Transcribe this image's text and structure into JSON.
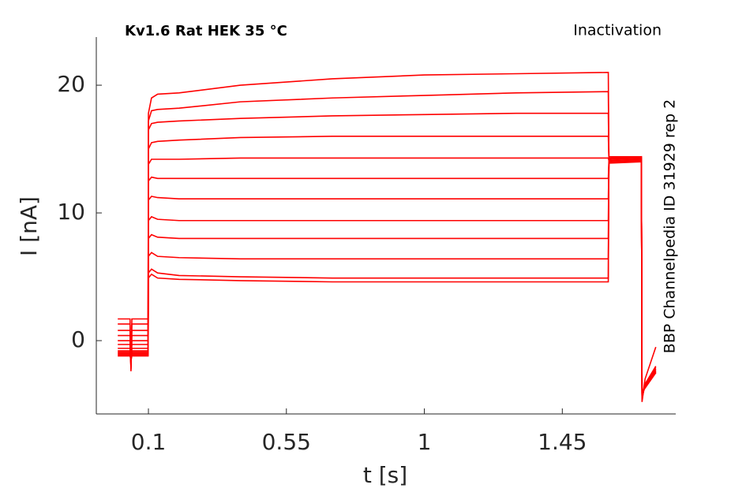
{
  "chart_data": {
    "type": "line",
    "title": "Kv1.6  Rat  HEK  35 °C",
    "subtitle": "Inactivation",
    "annotation": "BBP Channelpedia ID 31929 rep 2",
    "xlabel": "t [s]",
    "ylabel": "I [nA]",
    "xlim": [
      -0.07,
      1.82
    ],
    "ylim": [
      -5.74,
      23.77
    ],
    "xticks": [
      0.1,
      0.55,
      1,
      1.45
    ],
    "yticks": [
      0,
      10,
      20
    ],
    "grid": false,
    "x": [
      0.0,
      0.04,
      0.043,
      0.046,
      0.05,
      0.099,
      0.1,
      0.11,
      0.13,
      0.2,
      0.4,
      0.7,
      1.0,
      1.3,
      1.6,
      1.602,
      1.61,
      1.708,
      1.71,
      1.72,
      1.755
    ],
    "series": [
      {
        "color": "#ff0000",
        "values": [
          1.7,
          1.7,
          -2.4,
          1.7,
          1.7,
          1.7,
          17.8,
          19.0,
          19.3,
          19.4,
          20.0,
          20.5,
          20.8,
          20.9,
          21.0,
          14.4,
          14.4,
          14.4,
          -4.8,
          -3.0,
          -0.5
        ]
      },
      {
        "color": "#ff0000",
        "values": [
          1.3,
          1.3,
          -2.3,
          1.3,
          1.3,
          1.3,
          17.2,
          18.0,
          18.1,
          18.2,
          18.7,
          19.0,
          19.2,
          19.4,
          19.5,
          14.3,
          14.3,
          14.4,
          -4.6,
          -3.4,
          -2.0
        ]
      },
      {
        "color": "#ff0000",
        "values": [
          0.8,
          0.8,
          -2.2,
          0.8,
          0.8,
          0.8,
          16.5,
          17.0,
          17.1,
          17.2,
          17.4,
          17.6,
          17.7,
          17.8,
          17.8,
          14.2,
          14.3,
          14.3,
          -4.5,
          -3.4,
          -2.1
        ]
      },
      {
        "color": "#ff0000",
        "values": [
          0.4,
          0.4,
          -2.1,
          0.4,
          0.4,
          0.4,
          15.0,
          15.5,
          15.6,
          15.7,
          15.9,
          16.0,
          16.0,
          16.0,
          16.0,
          14.2,
          14.2,
          14.3,
          -4.4,
          -3.5,
          -2.2
        ]
      },
      {
        "color": "#ff0000",
        "values": [
          0,
          0,
          -2.0,
          0,
          0,
          0,
          13.8,
          14.2,
          14.2,
          14.2,
          14.3,
          14.3,
          14.3,
          14.3,
          14.3,
          14.1,
          14.2,
          14.3,
          -4.3,
          -3.5,
          -2.3
        ]
      },
      {
        "color": "#ff0000",
        "values": [
          -0.3,
          -0.3,
          -1.9,
          -0.3,
          -0.3,
          -0.3,
          12.5,
          12.8,
          12.7,
          12.7,
          12.7,
          12.7,
          12.7,
          12.7,
          12.7,
          14.1,
          14.1,
          14.2,
          -4.3,
          -3.6,
          -2.3
        ]
      },
      {
        "color": "#ff0000",
        "values": [
          -0.6,
          -0.6,
          -1.8,
          -0.6,
          -0.6,
          -0.6,
          11.0,
          11.3,
          11.2,
          11.1,
          11.1,
          11.1,
          11.1,
          11.1,
          11.1,
          14.0,
          14.1,
          14.2,
          -4.2,
          -3.6,
          -2.4
        ]
      },
      {
        "color": "#ff0000",
        "values": [
          -0.8,
          -0.8,
          -1.7,
          -0.8,
          -0.8,
          -0.8,
          9.4,
          9.7,
          9.5,
          9.4,
          9.4,
          9.4,
          9.4,
          9.4,
          9.4,
          14.0,
          14.0,
          14.1,
          -4.2,
          -3.6,
          -2.4
        ]
      },
      {
        "color": "#ff0000",
        "values": [
          -0.9,
          -0.9,
          -1.6,
          -0.9,
          -0.9,
          -0.9,
          8.0,
          8.3,
          8.1,
          8.0,
          8.0,
          8.0,
          8.0,
          8.0,
          8.0,
          14.0,
          14.0,
          14.1,
          -4.1,
          -3.7,
          -2.5
        ]
      },
      {
        "color": "#ff0000",
        "values": [
          -1.0,
          -1.0,
          -1.6,
          -1.0,
          -1.0,
          -1.0,
          6.6,
          6.9,
          6.6,
          6.5,
          6.4,
          6.4,
          6.4,
          6.4,
          6.4,
          13.9,
          14.0,
          14.1,
          -4.1,
          -3.7,
          -2.5
        ]
      },
      {
        "color": "#ff0000",
        "values": [
          -1.1,
          -1.1,
          -1.5,
          -1.1,
          -1.1,
          -1.1,
          5.3,
          5.6,
          5.3,
          5.1,
          5.0,
          4.9,
          4.9,
          4.9,
          4.9,
          13.9,
          14.0,
          14.0,
          -4.0,
          -3.7,
          -2.5
        ]
      },
      {
        "color": "#ff0000",
        "values": [
          -1.2,
          -1.2,
          -1.5,
          -1.2,
          -1.2,
          -1.2,
          4.9,
          5.2,
          4.9,
          4.8,
          4.7,
          4.6,
          4.6,
          4.6,
          4.6,
          13.9,
          13.9,
          14.0,
          -4.0,
          -3.7,
          -2.5
        ]
      }
    ]
  }
}
